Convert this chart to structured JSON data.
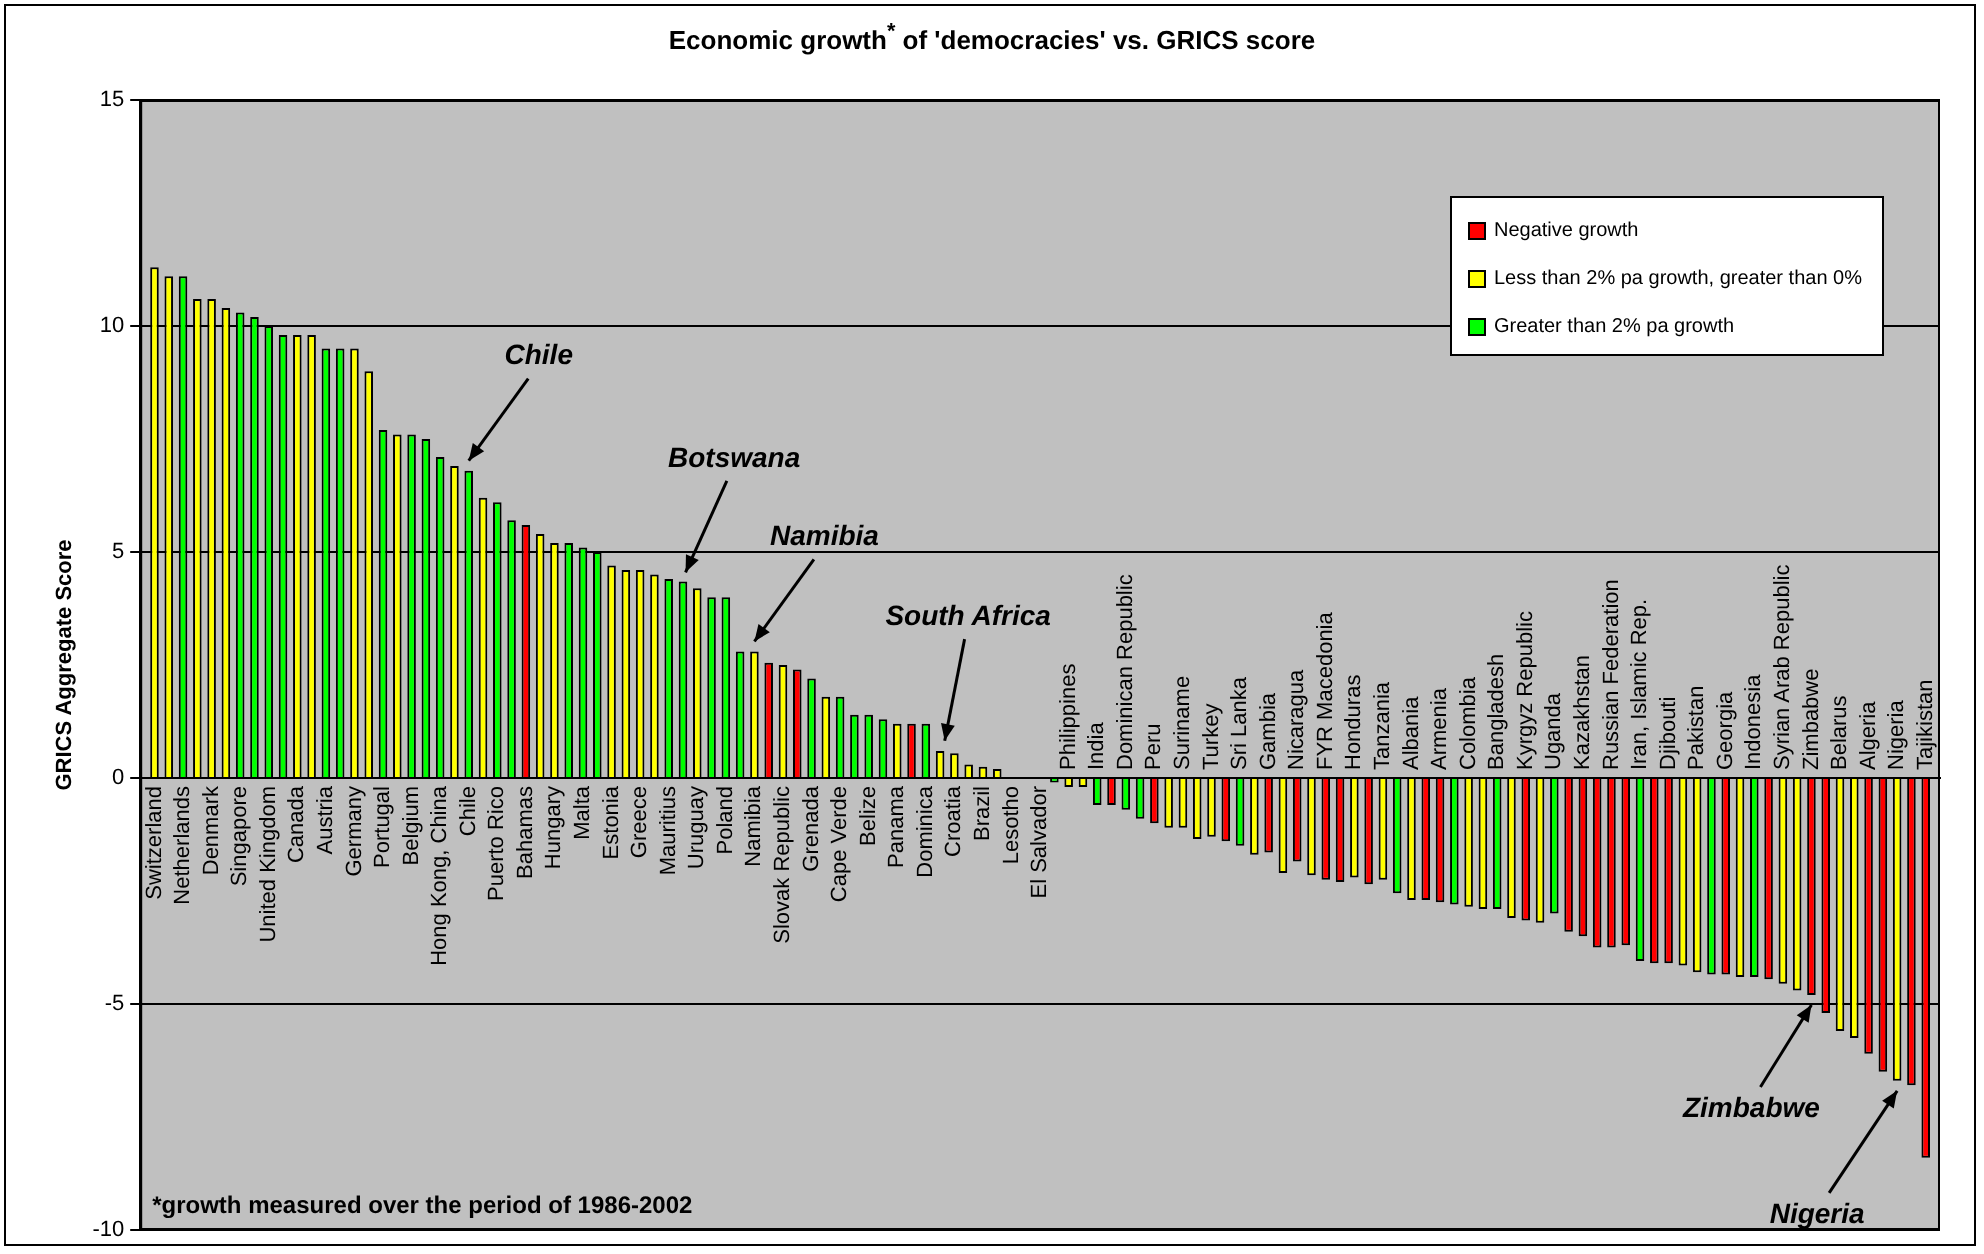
{
  "chart_data": {
    "type": "bar",
    "title": "Economic growth$^{*}$ of 'democracies' vs. GRICS score",
    "ylabel": "GRICS Aggregate Score",
    "categories": [
      "Switzerland",
      null,
      "Netherlands",
      null,
      "Denmark",
      null,
      "Singapore",
      null,
      "United Kingdom",
      null,
      "Canada",
      null,
      "Austria",
      null,
      "Germany",
      null,
      "Portugal",
      null,
      "Belgium",
      null,
      "Hong Kong, China",
      null,
      "Chile",
      null,
      "Puerto Rico",
      null,
      "Bahamas",
      null,
      "Hungary",
      null,
      "Malta",
      null,
      "Estonia",
      null,
      "Greece",
      null,
      "Mauritius",
      null,
      "Uruguay",
      null,
      "Poland",
      null,
      "Namibia",
      null,
      "Slovak Republic",
      null,
      "Grenada",
      null,
      "Cape Verde",
      null,
      "Belize",
      null,
      "Panama",
      null,
      "Dominica",
      null,
      "Croatia",
      null,
      "Brazil",
      null,
      "Lesotho",
      null,
      "El Salvador",
      null,
      "Philippines",
      null,
      "India",
      null,
      "Dominican Republic",
      null,
      "Peru",
      null,
      "Suriname",
      null,
      "Turkey",
      null,
      "Sri Lanka",
      null,
      "Gambia",
      null,
      "Nicaragua",
      null,
      "FYR Macedonia",
      null,
      "Honduras",
      null,
      "Tanzania",
      null,
      "Albania",
      null,
      "Armenia",
      null,
      "Colombia",
      null,
      "Bangladesh",
      null,
      "Kyrgyz Republic",
      null,
      "Uganda",
      null,
      "Kazakhstan",
      null,
      "Russian Federation",
      null,
      "Iran, Islamic Rep.",
      null,
      "Djibouti",
      null,
      "Pakistan",
      null,
      "Georgia",
      null,
      "Indonesia",
      null,
      "Syrian Arab Republic",
      null,
      "Zimbabwe",
      null,
      "Belarus",
      null,
      "Algeria",
      null,
      "Nigeria",
      null,
      "Tajikistan"
    ],
    "series": [
      {
        "name": "Negative growth",
        "color": "#ff0000",
        "values": [
          null,
          null,
          null,
          null,
          null,
          null,
          null,
          null,
          null,
          null,
          null,
          null,
          null,
          null,
          null,
          null,
          null,
          null,
          null,
          null,
          null,
          null,
          null,
          null,
          null,
          null,
          5.6,
          null,
          null,
          null,
          null,
          null,
          null,
          null,
          null,
          null,
          null,
          null,
          null,
          null,
          null,
          null,
          null,
          2.55,
          null,
          2.4,
          null,
          null,
          null,
          null,
          null,
          null,
          null,
          1.2,
          null,
          null,
          null,
          null,
          null,
          null,
          null,
          null,
          null,
          null,
          null,
          null,
          null,
          -0.6,
          null,
          null,
          -1.0,
          null,
          null,
          null,
          null,
          -1.4,
          null,
          null,
          -1.65,
          null,
          -1.85,
          null,
          -2.25,
          -2.3,
          null,
          -2.35,
          null,
          null,
          null,
          -2.7,
          -2.75,
          null,
          null,
          null,
          null,
          null,
          -3.15,
          null,
          null,
          -3.4,
          -3.5,
          -3.75,
          -3.75,
          -3.7,
          null,
          -4.1,
          -4.1,
          null,
          null,
          null,
          -4.35,
          null,
          null,
          -4.45,
          null,
          null,
          -4.8,
          -5.2,
          null,
          null,
          -6.1,
          -6.5,
          null,
          -6.8,
          -8.4
        ]
      },
      {
        "name": "Less than 2% pa growth, greater than 0%",
        "color": "#ffff00",
        "values": [
          11.3,
          11.1,
          null,
          10.6,
          10.6,
          10.4,
          null,
          null,
          null,
          null,
          9.8,
          9.8,
          null,
          null,
          9.5,
          9.0,
          null,
          7.6,
          null,
          null,
          null,
          6.9,
          null,
          6.2,
          null,
          null,
          null,
          5.4,
          5.2,
          null,
          null,
          null,
          4.7,
          4.6,
          4.6,
          4.5,
          null,
          null,
          4.2,
          null,
          null,
          null,
          2.8,
          null,
          2.5,
          null,
          null,
          1.8,
          null,
          null,
          null,
          null,
          1.2,
          null,
          null,
          0.6,
          0.55,
          0.3,
          0.25,
          0.2,
          null,
          null,
          null,
          null,
          -0.2,
          -0.2,
          null,
          null,
          null,
          null,
          null,
          -1.1,
          -1.1,
          -1.35,
          -1.3,
          null,
          null,
          -1.7,
          null,
          -2.1,
          null,
          -2.15,
          null,
          null,
          -2.2,
          null,
          -2.25,
          null,
          -2.7,
          null,
          null,
          null,
          -2.85,
          -2.9,
          null,
          -3.1,
          null,
          -3.2,
          null,
          null,
          null,
          null,
          null,
          null,
          null,
          null,
          null,
          -4.15,
          -4.3,
          null,
          null,
          -4.4,
          null,
          null,
          -4.55,
          -4.7,
          null,
          null,
          -5.6,
          -5.75,
          null,
          null,
          -6.7,
          null,
          null
        ]
      },
      {
        "name": "Greater than 2% pa growth",
        "color": "#00ff00",
        "values": [
          null,
          null,
          11.1,
          null,
          null,
          null,
          10.3,
          10.2,
          10.0,
          9.8,
          null,
          null,
          9.5,
          9.5,
          null,
          null,
          7.7,
          null,
          7.6,
          7.5,
          7.1,
          null,
          6.8,
          null,
          6.1,
          5.7,
          null,
          null,
          null,
          5.2,
          5.1,
          5.0,
          null,
          null,
          null,
          null,
          4.4,
          4.35,
          null,
          4.0,
          4.0,
          2.8,
          null,
          null,
          null,
          null,
          2.2,
          null,
          1.8,
          1.4,
          1.4,
          1.3,
          null,
          null,
          1.2,
          null,
          null,
          null,
          null,
          null,
          null,
          null,
          null,
          -0.1,
          null,
          null,
          -0.6,
          null,
          -0.7,
          -0.9,
          null,
          null,
          null,
          null,
          null,
          null,
          -1.5,
          null,
          null,
          null,
          null,
          null,
          null,
          null,
          null,
          null,
          null,
          -2.55,
          null,
          null,
          null,
          -2.8,
          null,
          null,
          -2.9,
          null,
          null,
          null,
          -3.0,
          null,
          null,
          null,
          null,
          null,
          -4.05,
          null,
          null,
          null,
          null,
          -4.35,
          null,
          null,
          -4.4,
          null,
          null,
          null,
          null,
          null,
          null,
          null,
          null,
          null,
          null,
          null,
          null
        ]
      }
    ],
    "stacked": true,
    "ylim": [
      -10,
      15
    ],
    "yticks": [
      -10,
      -5,
      0,
      5,
      10,
      15
    ],
    "grid": "y",
    "legend": "top right",
    "annotations": [
      {
        "text": "Chile",
        "x": "Chile",
        "y": 6.8
      },
      "Botswana",
      {
        "text": "Namibia",
        "x": "Namibia",
        "y": 2.8
      },
      "South Africa",
      {
        "text": "Zimbabwe",
        "x": "Zimbabwe",
        "y": -4.8
      },
      {
        "text": "Nigeria",
        "x": "Nigeria",
        "y": -6.7
      },
      "*growth measured over the period of 1986-2002"
    ]
  }
}
